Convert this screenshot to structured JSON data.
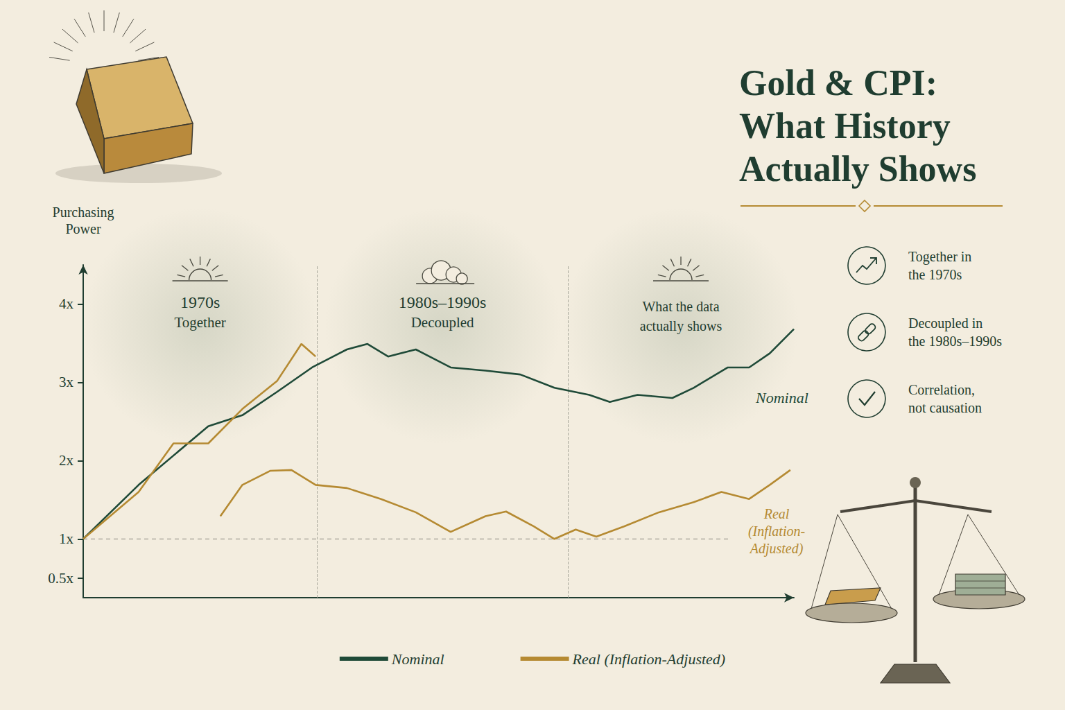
{
  "chart_data": {
    "type": "line",
    "title": "Gold & CPI:\nWhat History\nActually Shows",
    "y_label": "Purchasing\nPower",
    "xlim": [
      0,
      100
    ],
    "ylim": [
      0.25,
      4.5
    ],
    "yticks": [
      {
        "value": 0.5,
        "label": "0.5x"
      },
      {
        "value": 1,
        "label": "1x"
      },
      {
        "value": 2,
        "label": "2x"
      },
      {
        "value": 3,
        "label": "3x"
      },
      {
        "value": 4,
        "label": "4x"
      }
    ],
    "tick_labels": "y",
    "grid": false,
    "legend": "bottom",
    "reference_line": 1,
    "eras": [
      {
        "title": "1970s",
        "subtitle": "Together",
        "end": 32.9
      },
      {
        "title": "1980s–1990s",
        "subtitle": "Decoupled",
        "end": 68.2
      },
      {
        "title": "What the data\nactually shows"
      }
    ],
    "key_points": [
      "Together in\nthe 1970s",
      "Decoupled in\nthe 1980s–1990s",
      "Correlation,\nnot causation"
    ],
    "series": [
      {
        "name": "Nominal",
        "color": "#1f4a38",
        "end_label": "Nominal",
        "x": [
          0,
          7.8,
          17.6,
          22.4,
          27.3,
          32.2,
          37.1,
          40,
          42.9,
          46.8,
          51.7,
          56.6,
          61.5,
          66.3,
          71.2,
          74.1,
          78,
          82.9,
          85.9,
          90.7,
          93.7,
          96.6,
          100
        ],
        "values": [
          1,
          1.69,
          2.44,
          2.58,
          2.88,
          3.19,
          3.42,
          3.49,
          3.33,
          3.42,
          3.19,
          3.15,
          3.1,
          2.93,
          2.84,
          2.75,
          2.84,
          2.8,
          2.93,
          3.19,
          3.19,
          3.37,
          3.68
        ]
      },
      {
        "name": "Real (Inflation-Adjusted)",
        "color": "#b58a32",
        "end_label": "Real\n(Inflation-\nAdjusted)",
        "x": [
          0,
          7.8,
          12.7,
          17.6,
          22.4,
          27.3,
          30.7,
          32.7,
          32.7,
          19.3,
          22.4,
          26.3,
          29.3,
          32.7,
          37.1,
          41.9,
          46.8,
          51.7,
          56.6,
          59.5,
          63.4,
          66.3,
          69.3,
          72.2,
          76.1,
          81,
          85.9,
          89.8,
          93.7,
          96.6,
          99.5
        ],
        "values": [
          1,
          1.6,
          2.22,
          2.22,
          2.66,
          3.02,
          3.49,
          3.33,
          null,
          1.29,
          1.69,
          1.87,
          1.88,
          1.69,
          1.65,
          1.51,
          1.34,
          1.09,
          1.29,
          1.35,
          1.16,
          1.0,
          1.12,
          1.03,
          1.16,
          1.34,
          1.47,
          1.6,
          1.51,
          1.69,
          1.88
        ]
      }
    ]
  }
}
